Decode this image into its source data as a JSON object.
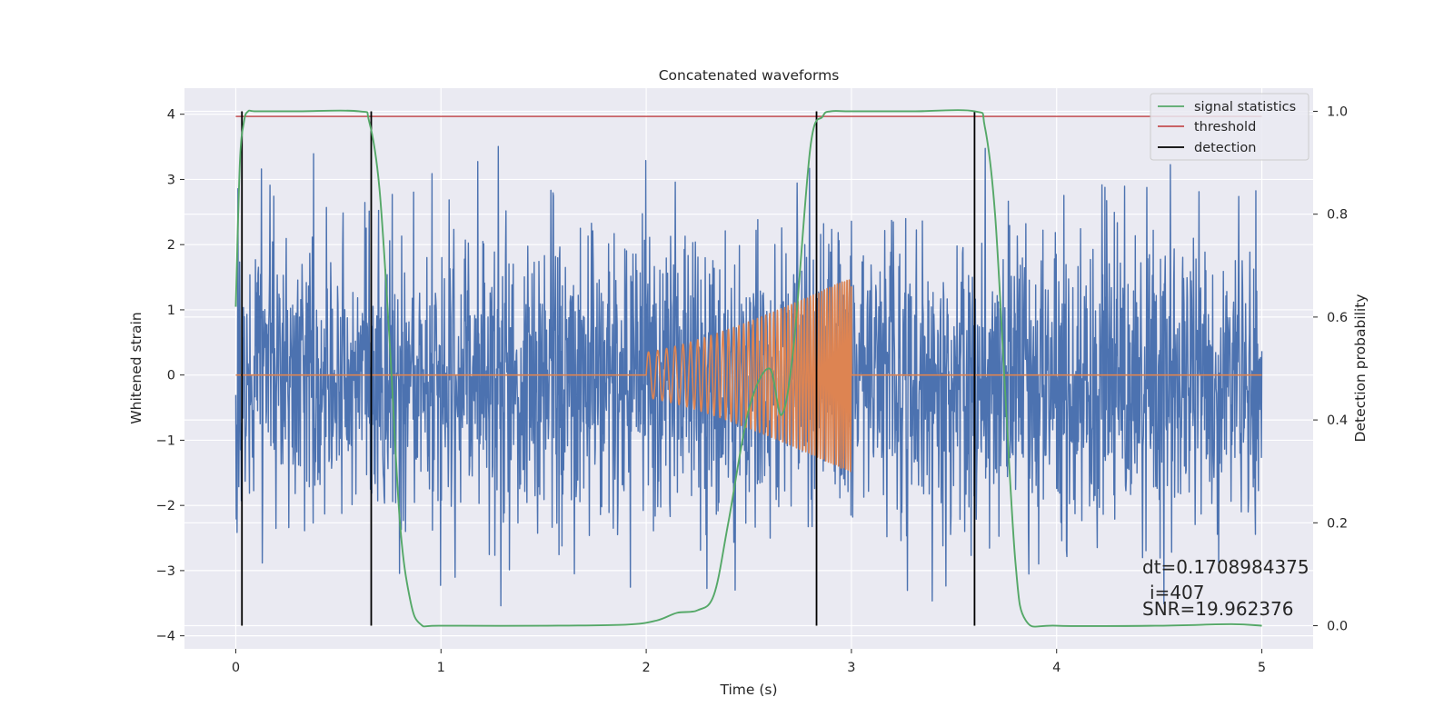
{
  "chart_data": {
    "type": "line",
    "title": "Concatenated waveforms",
    "xlabel": "Time (s)",
    "ylabel": "Whitened strain",
    "y2label": "Detection probability",
    "xlim": [
      -0.25,
      5.25
    ],
    "ylim": [
      -4.2,
      4.4
    ],
    "y2lim": [
      -0.045,
      1.045
    ],
    "xticks": [
      "0",
      "1",
      "2",
      "3",
      "4",
      "5"
    ],
    "yticks": [
      "−4",
      "−3",
      "−2",
      "−1",
      "0",
      "1",
      "2",
      "3",
      "4"
    ],
    "y2ticks": [
      "0.0",
      "0.2",
      "0.4",
      "0.6",
      "0.8",
      "1.0"
    ],
    "grid": true,
    "legend_position": "top-right",
    "series": [
      {
        "name": "",
        "description": "whitened strain noise, 0 to 5 s, roughly Gaussian with peaks near ±3.5",
        "color": "#4c72b0",
        "x_range": [
          0,
          5
        ],
        "amplitude_envelope": 3.6
      },
      {
        "name": "",
        "description": "injected chirp waveform between 2 s and 3 s, zero elsewhere",
        "color": "#dd8452",
        "x_range": [
          0,
          5
        ],
        "chirp_start": 2.0,
        "chirp_end": 3.0,
        "chirp_amplitude": [
          0.35,
          1.5
        ]
      },
      {
        "name": "signal statistics",
        "color": "#55a868",
        "axis": "right",
        "x": [
          0.0,
          0.02,
          0.04,
          0.06,
          0.1,
          0.3,
          0.6,
          0.65,
          0.7,
          0.75,
          0.8,
          0.85,
          0.9,
          1.0,
          1.5,
          1.9,
          2.05,
          2.15,
          2.25,
          2.33,
          2.4,
          2.5,
          2.6,
          2.66,
          2.72,
          2.8,
          2.86,
          2.9,
          3.0,
          3.3,
          3.6,
          3.65,
          3.7,
          3.75,
          3.8,
          3.85,
          4.0,
          4.5,
          4.85,
          5.0
        ],
        "values": [
          0.62,
          0.9,
          0.98,
          1.0,
          1.0,
          1.0,
          1.0,
          0.98,
          0.85,
          0.55,
          0.2,
          0.05,
          0.003,
          0.0,
          0.0,
          0.002,
          0.01,
          0.025,
          0.03,
          0.06,
          0.2,
          0.42,
          0.5,
          0.41,
          0.55,
          0.93,
          0.99,
          1.0,
          1.0,
          1.0,
          1.0,
          0.97,
          0.8,
          0.45,
          0.12,
          0.01,
          0.0,
          0.0,
          0.003,
          0.0
        ]
      },
      {
        "name": "threshold",
        "color": "#c44e52",
        "axis": "right",
        "x": [
          0,
          5
        ],
        "values": [
          0.99,
          0.99
        ]
      },
      {
        "name": "detection",
        "color": "#000000",
        "axis": "right",
        "type": "vline",
        "x": [
          0.03,
          0.66,
          2.83,
          3.6
        ],
        "ymin": 0.0,
        "ymax": 1.0
      }
    ],
    "annotations": [
      "dt=0.1708984375",
      "i=407",
      "SNR=19.962376"
    ]
  }
}
